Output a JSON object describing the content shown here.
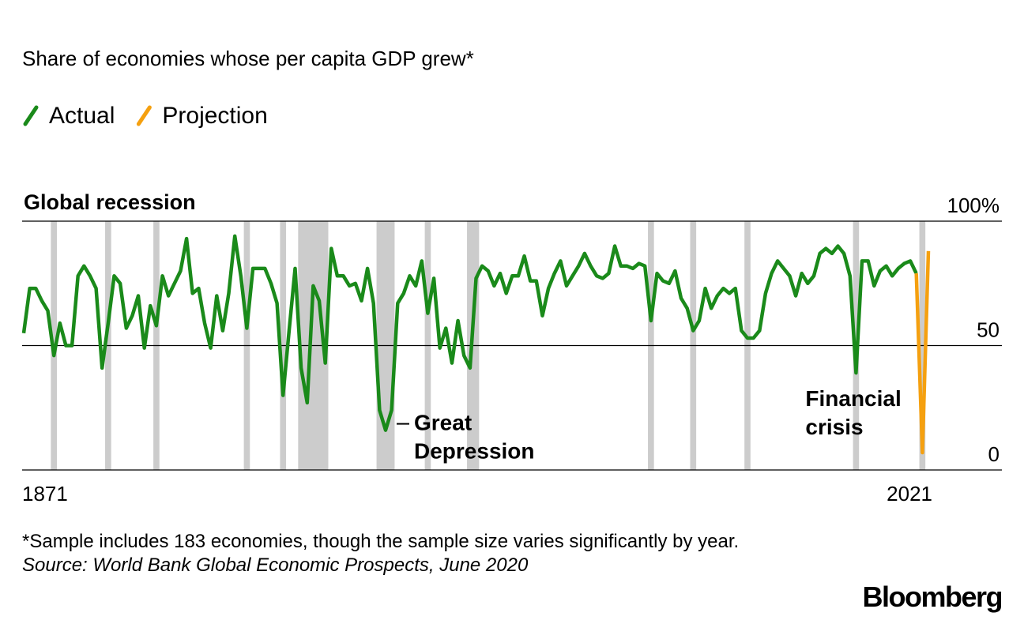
{
  "chart_data": {
    "type": "line",
    "title": "Share of economies whose per capita GDP grew*",
    "footnote": "*Sample includes 183 economies, though the sample size varies significantly by year.",
    "source": "Source: World Bank Global Economic Prospects, June 2020",
    "brand": "Bloomberg",
    "recession_label": "Global recession",
    "recession_color": "#cccccc",
    "recessions": [
      [
        1876,
        1876
      ],
      [
        1885,
        1885
      ],
      [
        1893,
        1893
      ],
      [
        1908,
        1908
      ],
      [
        1914,
        1914
      ],
      [
        1917,
        1921
      ],
      [
        1930,
        1932
      ],
      [
        1938,
        1938
      ],
      [
        1945,
        1946
      ],
      [
        1975,
        1975
      ],
      [
        1982,
        1982
      ],
      [
        1991,
        1991
      ],
      [
        2009,
        2009
      ],
      [
        2020,
        2020
      ]
    ],
    "xlim": [
      1871,
      2021
    ],
    "xticks": [
      1871,
      2021
    ],
    "ylim": [
      0,
      100
    ],
    "yticks": [
      0,
      50,
      {
        "value": 100,
        "label": "100%"
      }
    ],
    "grid": true,
    "legend": "top-left",
    "annotations": [
      {
        "lines": [
          "Great",
          "Depression"
        ],
        "x": 1931,
        "y": 16
      },
      {
        "lines": [
          "Financial",
          "crisis"
        ],
        "x": 2009,
        "y": 39
      }
    ],
    "series": [
      {
        "name": "Actual",
        "color": "#1a8a1a",
        "x": [
          1871,
          1872,
          1873,
          1874,
          1875,
          1876,
          1877,
          1878,
          1879,
          1880,
          1881,
          1882,
          1883,
          1884,
          1885,
          1886,
          1887,
          1888,
          1889,
          1890,
          1891,
          1892,
          1893,
          1894,
          1895,
          1896,
          1897,
          1898,
          1899,
          1900,
          1901,
          1902,
          1903,
          1904,
          1905,
          1906,
          1907,
          1908,
          1909,
          1910,
          1911,
          1912,
          1913,
          1914,
          1915,
          1916,
          1917,
          1918,
          1919,
          1920,
          1921,
          1922,
          1923,
          1924,
          1925,
          1926,
          1927,
          1928,
          1929,
          1930,
          1931,
          1932,
          1933,
          1934,
          1935,
          1936,
          1937,
          1938,
          1939,
          1940,
          1941,
          1942,
          1943,
          1944,
          1945,
          1946,
          1947,
          1948,
          1949,
          1950,
          1951,
          1952,
          1953,
          1954,
          1955,
          1956,
          1957,
          1958,
          1959,
          1960,
          1961,
          1962,
          1963,
          1964,
          1965,
          1966,
          1967,
          1968,
          1969,
          1970,
          1971,
          1972,
          1973,
          1974,
          1975,
          1976,
          1977,
          1978,
          1979,
          1980,
          1981,
          1982,
          1983,
          1984,
          1985,
          1986,
          1987,
          1988,
          1989,
          1990,
          1991,
          1992,
          1993,
          1994,
          1995,
          1996,
          1997,
          1998,
          1999,
          2000,
          2001,
          2002,
          2003,
          2004,
          2005,
          2006,
          2007,
          2008,
          2009,
          2010,
          2011,
          2012,
          2013,
          2014,
          2015,
          2016,
          2017,
          2018,
          2019
        ],
        "values": [
          55,
          73,
          73,
          68,
          64,
          46,
          59,
          50,
          50,
          78,
          82,
          78,
          73,
          41,
          59,
          78,
          75,
          57,
          62,
          70,
          49,
          66,
          58,
          78,
          70,
          75,
          80,
          93,
          71,
          73,
          59,
          49,
          70,
          56,
          71,
          94,
          78,
          57,
          81,
          81,
          81,
          75,
          67,
          30,
          56,
          81,
          41,
          27,
          74,
          68,
          43,
          89,
          78,
          78,
          74,
          75,
          68,
          81,
          67,
          24,
          16,
          24,
          67,
          71,
          78,
          74,
          84,
          63,
          77,
          49,
          57,
          43,
          60,
          46,
          41,
          77,
          82,
          80,
          74,
          79,
          71,
          78,
          78,
          86,
          76,
          76,
          62,
          73,
          79,
          84,
          74,
          78,
          82,
          87,
          82,
          78,
          77,
          79,
          90,
          82,
          82,
          81,
          83,
          82,
          60,
          79,
          76,
          75,
          80,
          69,
          65,
          56,
          60,
          73,
          65,
          70,
          73,
          71,
          73,
          56,
          53,
          53,
          56,
          71,
          79,
          84,
          81,
          78,
          70,
          79,
          75,
          78,
          87,
          89,
          87,
          90,
          87,
          78,
          39,
          84,
          84,
          74,
          80,
          82,
          78,
          81,
          83,
          84,
          79
        ]
      },
      {
        "name": "Projection",
        "color": "#f5a00f",
        "x": [
          2019,
          2020,
          2021
        ],
        "values": [
          79,
          7,
          88
        ]
      }
    ]
  }
}
